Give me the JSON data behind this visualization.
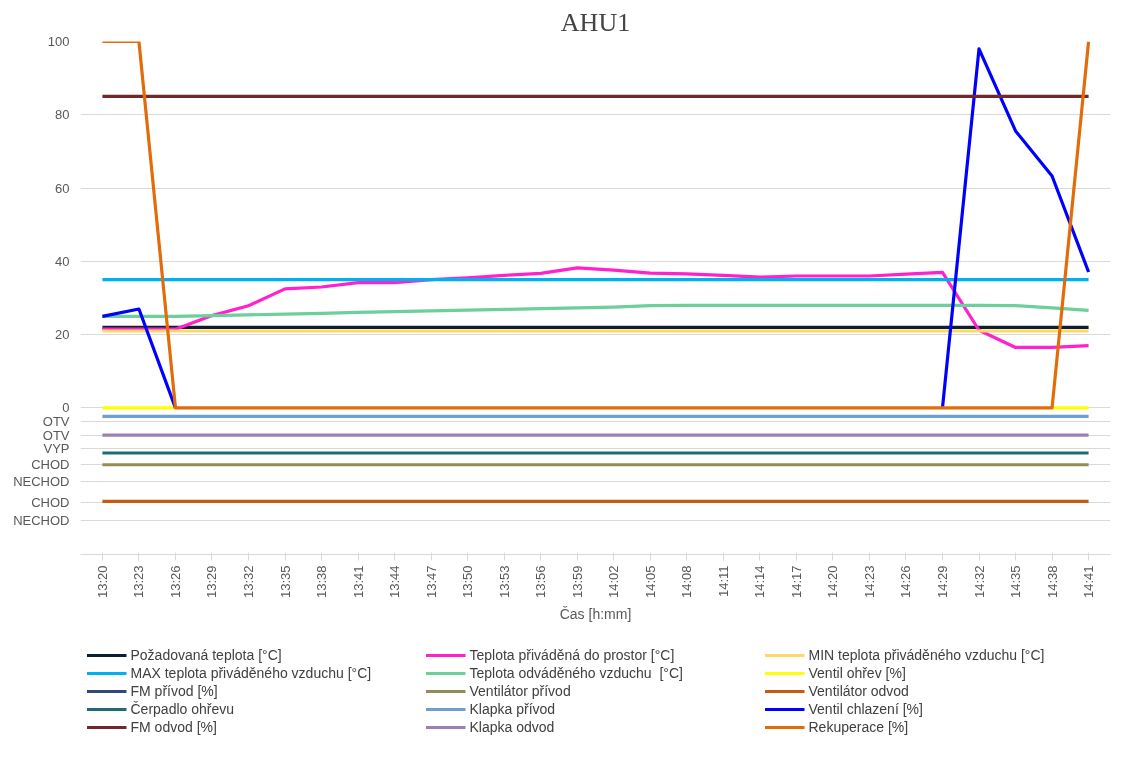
{
  "chart_data": {
    "type": "line",
    "title": "AHU1",
    "xlabel": "Čas [h:mm]",
    "categories": [
      "13:20",
      "13:23",
      "13:26",
      "13:29",
      "13:32",
      "13:35",
      "13:38",
      "13:41",
      "13:44",
      "13:47",
      "13:50",
      "13:53",
      "13:56",
      "13:59",
      "14:02",
      "14:05",
      "14:08",
      "14:11",
      "14:14",
      "14:17",
      "14:20",
      "14:23",
      "14:26",
      "14:29",
      "14:32",
      "14:35",
      "14:38",
      "14:41"
    ],
    "ylim": [
      -40,
      100
    ],
    "yticks": [
      100,
      80,
      60,
      40,
      20,
      0,
      {
        "value": -3.7,
        "label": "OTV"
      },
      {
        "value": -7.4,
        "label": "OTV"
      },
      {
        "value": -11,
        "label": "VYP"
      },
      {
        "value": -15.5,
        "label": "CHOD"
      },
      {
        "value": -20,
        "label": "NECHOD"
      },
      {
        "value": -25.8,
        "label": "CHOD"
      },
      {
        "value": -30.7,
        "label": "NECHOD"
      }
    ],
    "grid": "y",
    "legend": "bottom",
    "marker": "none",
    "line_style": "solid",
    "series": [
      {
        "name": "Požadovaná teplota [°C]",
        "color": "#0d1f33",
        "values": [
          22,
          22,
          22,
          22,
          22,
          22,
          22,
          22,
          22,
          22,
          22,
          22,
          22,
          22,
          22,
          22,
          22,
          22,
          22,
          22,
          22,
          22,
          22,
          22,
          22,
          22,
          22,
          22
        ]
      },
      {
        "name": "Teplota přiváděná do prostor [°C]",
        "color": "#ff22cc",
        "values": [
          21.5,
          21.5,
          21.5,
          25.2,
          27.9,
          32.5,
          33,
          34.2,
          34.2,
          35,
          35.5,
          36.2,
          36.7,
          38.2,
          37.6,
          36.8,
          36.6,
          36.2,
          35.7,
          36,
          36,
          36,
          36.5,
          37,
          21.2,
          16.5,
          16.5,
          17
        ]
      },
      {
        "name": "MIN teplota přiváděného vzduchu [°C]",
        "color": "#ffd966",
        "values": [
          21,
          21,
          21,
          21,
          21,
          21,
          21,
          21,
          21,
          21,
          21,
          21,
          21,
          21,
          21,
          21,
          21,
          21,
          21,
          21,
          21,
          21,
          21,
          21,
          21,
          21,
          21,
          21
        ]
      },
      {
        "name": "MAX teplota přiváděného vzduchu [°C]",
        "color": "#00b0f0",
        "values": [
          35,
          35,
          35,
          35,
          35,
          35,
          35,
          35,
          35,
          35,
          35,
          35,
          35,
          35,
          35,
          35,
          35,
          35,
          35,
          35,
          35,
          35,
          35,
          35,
          35,
          35,
          35,
          35
        ]
      },
      {
        "name": "Teplota odváděného vzduchu  [°C]",
        "color": "#6dcf9a",
        "values": [
          25,
          25,
          25,
          25.2,
          25.4,
          25.6,
          25.8,
          26.1,
          26.3,
          26.5,
          26.7,
          26.9,
          27.1,
          27.3,
          27.5,
          27.9,
          28,
          28,
          28,
          28,
          28,
          28,
          28,
          28,
          28,
          27.9,
          27.3,
          26.6
        ]
      },
      {
        "name": "Ventil ohřev [%]",
        "color": "#ffff00",
        "values": [
          0,
          0,
          0,
          null,
          null,
          null,
          null,
          null,
          null,
          null,
          null,
          null,
          null,
          null,
          null,
          null,
          null,
          null,
          null,
          null,
          null,
          null,
          null,
          null,
          null,
          null,
          0,
          0
        ]
      },
      {
        "name": "FM přívod [%]",
        "color": "#2e4a7a",
        "values": [
          null,
          null,
          null,
          null,
          null,
          null,
          null,
          null,
          null,
          null,
          null,
          null,
          null,
          null,
          null,
          null,
          null,
          null,
          null,
          null,
          null,
          null,
          null,
          null,
          null,
          null,
          null,
          null
        ]
      },
      {
        "name": "Ventilátor přívod",
        "color": "#948a54",
        "values": [
          -15.5,
          -15.5,
          -15.5,
          -15.5,
          -15.5,
          -15.5,
          -15.5,
          -15.5,
          -15.5,
          -15.5,
          -15.5,
          -15.5,
          -15.5,
          -15.5,
          -15.5,
          -15.5,
          -15.5,
          -15.5,
          -15.5,
          -15.5,
          -15.5,
          -15.5,
          -15.5,
          -15.5,
          -15.5,
          -15.5,
          -15.5,
          -15.5
        ]
      },
      {
        "name": "Ventilátor odvod",
        "color": "#c55a11",
        "values": [
          -25.5,
          -25.5,
          -25.5,
          -25.5,
          -25.5,
          -25.5,
          -25.5,
          -25.5,
          -25.5,
          -25.5,
          -25.5,
          -25.5,
          -25.5,
          -25.5,
          -25.5,
          -25.5,
          -25.5,
          -25.5,
          -25.5,
          -25.5,
          -25.5,
          -25.5,
          -25.5,
          -25.5,
          -25.5,
          -25.5,
          -25.5,
          -25.5
        ]
      },
      {
        "name": "Čerpadlo ohřevu",
        "color": "#1f6b75",
        "values": [
          -12.3,
          -12.3,
          -12.3,
          -12.3,
          -12.3,
          -12.3,
          -12.3,
          -12.3,
          -12.3,
          -12.3,
          -12.3,
          -12.3,
          -12.3,
          -12.3,
          -12.3,
          -12.3,
          -12.3,
          -12.3,
          -12.3,
          -12.3,
          -12.3,
          -12.3,
          -12.3,
          -12.3,
          -12.3,
          -12.3,
          -12.3,
          -12.3
        ]
      },
      {
        "name": "Klapka přívod",
        "color": "#6f9fd0",
        "values": [
          -2.3,
          -2.3,
          -2.3,
          -2.3,
          -2.3,
          -2.3,
          -2.3,
          -2.3,
          -2.3,
          -2.3,
          -2.3,
          -2.3,
          -2.3,
          -2.3,
          -2.3,
          -2.3,
          -2.3,
          -2.3,
          -2.3,
          -2.3,
          -2.3,
          -2.3,
          -2.3,
          -2.3,
          -2.3,
          -2.3,
          -2.3,
          -2.3
        ]
      },
      {
        "name": "Ventil chlazení [%]",
        "color": "#0000ff",
        "values": [
          25,
          27,
          0,
          null,
          null,
          null,
          null,
          null,
          null,
          null,
          null,
          null,
          null,
          null,
          null,
          null,
          null,
          null,
          null,
          null,
          null,
          null,
          null,
          0,
          98,
          75.6,
          63.3,
          37.1
        ]
      },
      {
        "name": "FM odvod [%]",
        "color": "#70282a",
        "values": [
          85,
          85,
          85,
          85,
          85,
          85,
          85,
          85,
          85,
          85,
          85,
          85,
          85,
          85,
          85,
          85,
          85,
          85,
          85,
          85,
          85,
          85,
          85,
          85,
          85,
          85,
          85,
          85
        ]
      },
      {
        "name": "Klapka odvod",
        "color": "#9b80b8",
        "values": [
          -7.4,
          -7.4,
          -7.4,
          -7.4,
          -7.4,
          -7.4,
          -7.4,
          -7.4,
          -7.4,
          -7.4,
          -7.4,
          -7.4,
          -7.4,
          -7.4,
          -7.4,
          -7.4,
          -7.4,
          -7.4,
          -7.4,
          -7.4,
          -7.4,
          -7.4,
          -7.4,
          -7.4,
          -7.4,
          -7.4,
          -7.4,
          -7.4
        ]
      },
      {
        "name": "Rekuperace [%]",
        "color": "#e36c0a",
        "values": [
          100,
          100,
          0,
          0,
          0,
          0,
          0,
          0,
          0,
          0,
          0,
          0,
          0,
          0,
          0,
          0,
          0,
          0,
          0,
          0,
          0,
          0,
          0,
          0,
          0,
          0,
          0,
          100
        ]
      }
    ]
  }
}
